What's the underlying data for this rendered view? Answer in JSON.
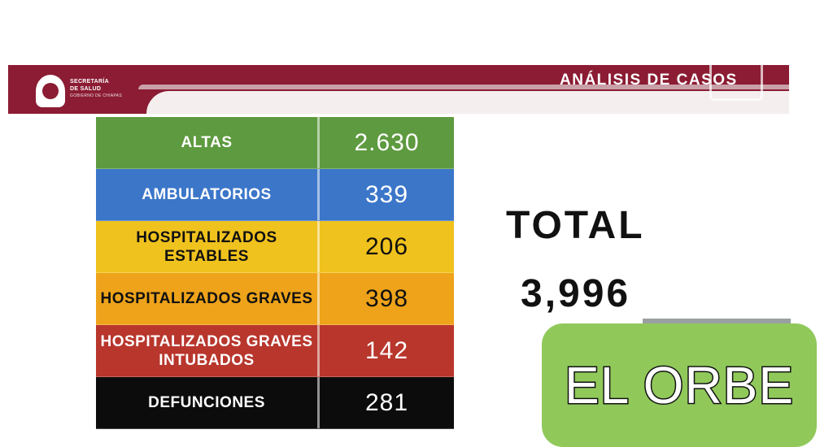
{
  "header": {
    "org_line1": "SECRETARÍA",
    "org_line2": "DE SALUD",
    "org_line3": "GOBIERNO DE CHIAPAS",
    "title": "ANÁLISIS DE CASOS"
  },
  "table": {
    "rows": [
      {
        "label": "ALTAS",
        "value": "2.630",
        "color": "#5e9a3f",
        "text_color": "#ffffff"
      },
      {
        "label": "AMBULATORIOS",
        "value": "339",
        "color": "#3b76c9",
        "text_color": "#ffffff"
      },
      {
        "label": "HOSPITALIZADOS ESTABLES",
        "value": "206",
        "color": "#f0c21d",
        "text_color": "#111111"
      },
      {
        "label": "HOSPITALIZADOS GRAVES",
        "value": "398",
        "color": "#eea31a",
        "text_color": "#111111"
      },
      {
        "label": "HOSPITALIZADOS GRAVES INTUBADOS",
        "value": "142",
        "color": "#b8362c",
        "text_color": "#ffffff"
      },
      {
        "label": "DEFUNCIONES",
        "value": "281",
        "color": "#0c0c0c",
        "text_color": "#ffffff"
      }
    ]
  },
  "total": {
    "label": "TOTAL",
    "value": "3,996"
  },
  "watermark": {
    "text": "EL ORBE",
    "color": "#90c95a"
  }
}
